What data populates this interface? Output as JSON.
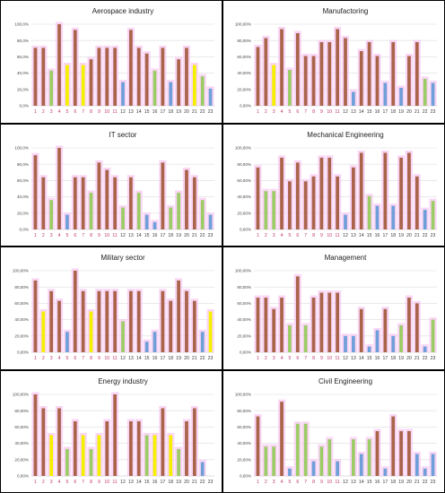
{
  "palette": {
    "brown": "#a9644a",
    "red": "#e8423a",
    "yellow": "#f5f000",
    "green": "#9ccc65",
    "blue": "#6f9fd8",
    "halo": "#f7c8f2",
    "tick_primary": "#c0366f",
    "tick_secondary": "#3a3a3a"
  },
  "chart_data": [
    {
      "type": "bar",
      "title": "Aerospace industry",
      "ylim": [
        0,
        100
      ],
      "yticks": [
        "0,0%",
        "20,0%",
        "40,0%",
        "60,0%",
        "80,0%",
        "100,0%"
      ],
      "categories": [
        "1",
        "2",
        "3",
        "4",
        "5",
        "6",
        "7",
        "8",
        "9",
        "10",
        "11",
        "12",
        "13",
        "14",
        "15",
        "16",
        "17",
        "18",
        "19",
        "20",
        "21",
        "22",
        "23"
      ],
      "values": [
        71,
        71,
        43,
        100,
        50,
        93,
        50,
        57,
        71,
        71,
        71,
        29,
        93,
        71,
        64,
        43,
        71,
        29,
        57,
        71,
        50,
        36,
        21
      ],
      "colors": [
        "brown",
        "brown",
        "green",
        "brown",
        "yellow",
        "brown",
        "yellow",
        "brown",
        "brown",
        "brown",
        "brown",
        "blue",
        "brown",
        "brown",
        "brown",
        "green",
        "brown",
        "blue",
        "brown",
        "brown",
        "yellow",
        "green",
        "blue"
      ],
      "grid": true
    },
    {
      "type": "bar",
      "title": "Manufactoring",
      "ylim": [
        0,
        100
      ],
      "yticks": [
        "0,00%",
        "20,00%",
        "40,00%",
        "60,00%",
        "80,00%",
        "100,00%"
      ],
      "categories": [
        "1",
        "2",
        "3",
        "4",
        "5",
        "6",
        "7",
        "8",
        "9",
        "10",
        "11",
        "12",
        "13",
        "14",
        "15",
        "16",
        "17",
        "18",
        "19",
        "20",
        "21",
        "22",
        "23"
      ],
      "values": [
        72,
        83,
        50,
        94,
        44,
        89,
        61,
        61,
        78,
        78,
        94,
        83,
        17,
        67,
        78,
        61,
        28,
        78,
        22,
        61,
        78,
        33,
        28
      ],
      "colors": [
        "brown",
        "brown",
        "yellow",
        "brown",
        "green",
        "brown",
        "brown",
        "brown",
        "brown",
        "brown",
        "brown",
        "brown",
        "blue",
        "brown",
        "brown",
        "brown",
        "blue",
        "brown",
        "blue",
        "brown",
        "brown",
        "green",
        "blue"
      ],
      "grid": true
    },
    {
      "type": "bar",
      "title": "IT sector",
      "ylim": [
        0,
        100
      ],
      "yticks": [
        "0,0%",
        "20,0%",
        "40,0%",
        "60,0%",
        "80,0%",
        "100,0%"
      ],
      "categories": [
        "1",
        "2",
        "3",
        "4",
        "5",
        "6",
        "7",
        "8",
        "9",
        "10",
        "11",
        "12",
        "13",
        "14",
        "15",
        "16",
        "17",
        "18",
        "19",
        "20",
        "21",
        "22",
        "23"
      ],
      "values": [
        91,
        64,
        36,
        100,
        18,
        64,
        64,
        45,
        82,
        73,
        64,
        27,
        64,
        45,
        18,
        9,
        82,
        27,
        45,
        73,
        64,
        36,
        18
      ],
      "colors": [
        "brown",
        "brown",
        "green",
        "brown",
        "blue",
        "brown",
        "brown",
        "green",
        "brown",
        "brown",
        "brown",
        "green",
        "brown",
        "green",
        "blue",
        "blue",
        "brown",
        "green",
        "green",
        "brown",
        "brown",
        "green",
        "blue"
      ],
      "grid": true
    },
    {
      "type": "bar",
      "title": "Mechanical Engineering",
      "ylim": [
        0,
        100
      ],
      "yticks": [
        "0,00%",
        "20,00%",
        "40,00%",
        "60,00%",
        "80,00%",
        "100,00%"
      ],
      "categories": [
        "1",
        "2",
        "3",
        "4",
        "5",
        "6",
        "7",
        "8",
        "9",
        "10",
        "11",
        "12",
        "13",
        "14",
        "15",
        "16",
        "17",
        "18",
        "19",
        "20",
        "21",
        "22",
        "23"
      ],
      "values": [
        76,
        47,
        47,
        88,
        59,
        82,
        59,
        65,
        88,
        88,
        65,
        18,
        76,
        94,
        41,
        29,
        94,
        29,
        88,
        94,
        65,
        24,
        35
      ],
      "colors": [
        "brown",
        "green",
        "green",
        "brown",
        "brown",
        "brown",
        "brown",
        "brown",
        "brown",
        "brown",
        "brown",
        "blue",
        "brown",
        "brown",
        "green",
        "blue",
        "brown",
        "blue",
        "brown",
        "brown",
        "brown",
        "blue",
        "green"
      ],
      "grid": true
    },
    {
      "type": "bar",
      "title": "Military sector",
      "ylim": [
        0,
        100
      ],
      "yticks": [
        "0,00%",
        "20,00%",
        "40,00%",
        "60,00%",
        "80,00%",
        "100,00%"
      ],
      "categories": [
        "1",
        "2",
        "3",
        "4",
        "5",
        "6",
        "7",
        "8",
        "9",
        "10",
        "11",
        "12",
        "13",
        "14",
        "15",
        "16",
        "17",
        "18",
        "19",
        "20",
        "21",
        "22",
        "23"
      ],
      "values": [
        88,
        50,
        75,
        63,
        25,
        100,
        75,
        50,
        75,
        75,
        75,
        38,
        75,
        75,
        13,
        25,
        75,
        63,
        88,
        75,
        63,
        25,
        50
      ],
      "colors": [
        "brown",
        "yellow",
        "brown",
        "brown",
        "blue",
        "brown",
        "brown",
        "yellow",
        "brown",
        "brown",
        "brown",
        "green",
        "brown",
        "brown",
        "blue",
        "blue",
        "brown",
        "brown",
        "brown",
        "brown",
        "brown",
        "blue",
        "yellow"
      ],
      "grid": true
    },
    {
      "type": "bar",
      "title": "Management",
      "ylim": [
        0,
        100
      ],
      "yticks": [
        "0,00%",
        "20,00%",
        "40,00%",
        "60,00%",
        "80,00%",
        "100,00%"
      ],
      "categories": [
        "1",
        "2",
        "3",
        "4",
        "5",
        "6",
        "7",
        "8",
        "9",
        "10",
        "11",
        "12",
        "13",
        "14",
        "15",
        "16",
        "17",
        "18",
        "19",
        "20",
        "21",
        "22",
        "23"
      ],
      "values": [
        67,
        67,
        53,
        67,
        33,
        93,
        33,
        67,
        73,
        73,
        73,
        20,
        20,
        53,
        7,
        27,
        53,
        20,
        33,
        67,
        60,
        7,
        40
      ],
      "colors": [
        "brown",
        "brown",
        "brown",
        "brown",
        "green",
        "brown",
        "green",
        "brown",
        "brown",
        "brown",
        "brown",
        "blue",
        "blue",
        "brown",
        "blue",
        "blue",
        "brown",
        "blue",
        "green",
        "brown",
        "brown",
        "blue",
        "green"
      ],
      "grid": true
    },
    {
      "type": "bar",
      "title": "Energy industry",
      "ylim": [
        0,
        100
      ],
      "yticks": [
        "0,00%",
        "20,00%",
        "40,00%",
        "60,00%",
        "80,00%",
        "100,00%"
      ],
      "categories": [
        "1",
        "2",
        "3",
        "4",
        "5",
        "6",
        "7",
        "8",
        "9",
        "10",
        "11",
        "12",
        "13",
        "14",
        "15",
        "16",
        "17",
        "18",
        "19",
        "20",
        "21",
        "22",
        "23"
      ],
      "values": [
        100,
        83,
        50,
        83,
        33,
        67,
        50,
        33,
        50,
        67,
        100,
        0,
        67,
        67,
        50,
        50,
        83,
        50,
        33,
        67,
        83,
        17,
        0
      ],
      "colors": [
        "brown",
        "brown",
        "yellow",
        "brown",
        "green",
        "brown",
        "yellow",
        "green",
        "yellow",
        "brown",
        "brown",
        "blue",
        "brown",
        "brown",
        "green",
        "yellow",
        "brown",
        "yellow",
        "green",
        "brown",
        "brown",
        "blue",
        "blue"
      ],
      "grid": true
    },
    {
      "type": "bar",
      "title": "Civil Engineering",
      "ylim": [
        0,
        100
      ],
      "yticks": [
        "0,00%",
        "20,00%",
        "40,00%",
        "60,00%",
        "80,00%",
        "100,00%"
      ],
      "categories": [
        "1",
        "2",
        "3",
        "4",
        "5",
        "6",
        "7",
        "8",
        "9",
        "10",
        "11",
        "12",
        "13",
        "14",
        "15",
        "16",
        "17",
        "18",
        "19",
        "20",
        "21",
        "22",
        "23"
      ],
      "values": [
        73,
        36,
        36,
        91,
        9,
        64,
        64,
        18,
        36,
        45,
        18,
        0,
        45,
        27,
        45,
        55,
        9,
        73,
        55,
        55,
        27,
        9,
        27
      ],
      "colors": [
        "brown",
        "green",
        "green",
        "brown",
        "blue",
        "green",
        "green",
        "blue",
        "green",
        "green",
        "blue",
        "blue",
        "green",
        "blue",
        "green",
        "brown",
        "blue",
        "brown",
        "brown",
        "brown",
        "blue",
        "blue",
        "blue"
      ],
      "grid": true
    }
  ]
}
